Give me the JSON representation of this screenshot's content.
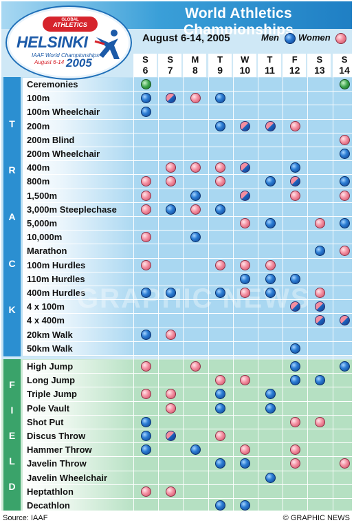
{
  "title": "World Athletics Championships",
  "date_range": "August 6-14, 2005",
  "legend": {
    "men": "Men",
    "women": "Women"
  },
  "logo": {
    "badge_top": "GLOBAL",
    "badge_main": "ATHLETICS",
    "city": "HELSINKI",
    "sub": "IAAF World Championships",
    "dates": "August 6-14",
    "year": "2005"
  },
  "days": [
    {
      "name": "S",
      "num": "6"
    },
    {
      "name": "S",
      "num": "7"
    },
    {
      "name": "M",
      "num": "8"
    },
    {
      "name": "T",
      "num": "9"
    },
    {
      "name": "W",
      "num": "10"
    },
    {
      "name": "T",
      "num": "11"
    },
    {
      "name": "F",
      "num": "12"
    },
    {
      "name": "S",
      "num": "13"
    },
    {
      "name": "S",
      "num": "14"
    }
  ],
  "sections": [
    {
      "label": "TRACK",
      "events": [
        {
          "name": "Ceremonies",
          "marks": [
            "C",
            "",
            "",
            "",
            "",
            "",
            "",
            "",
            "C"
          ]
        },
        {
          "name": "100m",
          "marks": [
            "M",
            "B",
            "W",
            "M",
            "",
            "",
            "",
            "",
            ""
          ]
        },
        {
          "name": "100m Wheelchair",
          "marks": [
            "M",
            "",
            "",
            "",
            "",
            "",
            "",
            "",
            ""
          ]
        },
        {
          "name": "200m",
          "marks": [
            "",
            "",
            "",
            "M",
            "B",
            "B",
            "W",
            "",
            ""
          ]
        },
        {
          "name": "200m Blind",
          "marks": [
            "",
            "",
            "",
            "",
            "",
            "",
            "",
            "",
            "W"
          ]
        },
        {
          "name": "200m Wheelchair",
          "marks": [
            "",
            "",
            "",
            "",
            "",
            "",
            "",
            "",
            "M"
          ]
        },
        {
          "name": "400m",
          "marks": [
            "",
            "W",
            "W",
            "W",
            "B",
            "",
            "M",
            "",
            ""
          ]
        },
        {
          "name": "800m",
          "marks": [
            "W",
            "W",
            "",
            "W",
            "",
            "M",
            "B",
            "",
            "M"
          ]
        },
        {
          "name": "1,500m",
          "marks": [
            "W",
            "",
            "M",
            "",
            "B",
            "",
            "W",
            "",
            "W"
          ]
        },
        {
          "name": "3,000m Steeplechase",
          "marks": [
            "W",
            "M",
            "W",
            "M",
            "",
            "",
            "",
            "",
            ""
          ]
        },
        {
          "name": "5,000m",
          "marks": [
            "",
            "",
            "",
            "",
            "W",
            "M",
            "",
            "W",
            "M"
          ]
        },
        {
          "name": "10,000m",
          "marks": [
            "W",
            "",
            "M",
            "",
            "",
            "",
            "",
            "",
            ""
          ]
        },
        {
          "name": "Marathon",
          "marks": [
            "",
            "",
            "",
            "",
            "",
            "",
            "",
            "M",
            "W"
          ]
        },
        {
          "name": "100m Hurdles",
          "marks": [
            "W",
            "",
            "",
            "W",
            "W",
            "W",
            "",
            "",
            ""
          ]
        },
        {
          "name": "110m Hurdles",
          "marks": [
            "",
            "",
            "",
            "",
            "M",
            "M",
            "M",
            "",
            ""
          ]
        },
        {
          "name": "400m Hurdles",
          "marks": [
            "M",
            "M",
            "",
            "M",
            "W",
            "M",
            "",
            "W",
            ""
          ]
        },
        {
          "name": "4 x 100m",
          "marks": [
            "",
            "",
            "",
            "",
            "",
            "",
            "B",
            "B",
            ""
          ]
        },
        {
          "name": "4 x 400m",
          "marks": [
            "",
            "",
            "",
            "",
            "",
            "",
            "",
            "B",
            "B"
          ]
        },
        {
          "name": "20km Walk",
          "marks": [
            "M",
            "W",
            "",
            "",
            "",
            "",
            "",
            "",
            ""
          ]
        },
        {
          "name": "50km Walk",
          "marks": [
            "",
            "",
            "",
            "",
            "",
            "",
            "M",
            "",
            ""
          ]
        }
      ]
    },
    {
      "label": "FIELD",
      "events": [
        {
          "name": "High Jump",
          "marks": [
            "W",
            "",
            "W",
            "",
            "",
            "",
            "M",
            "",
            "M"
          ]
        },
        {
          "name": "Long Jump",
          "marks": [
            "",
            "",
            "",
            "W",
            "W",
            "",
            "M",
            "M",
            ""
          ]
        },
        {
          "name": "Triple Jump",
          "marks": [
            "W",
            "W",
            "",
            "M",
            "",
            "M",
            "",
            "",
            ""
          ]
        },
        {
          "name": "Pole Vault",
          "marks": [
            "",
            "W",
            "",
            "M",
            "",
            "M",
            "",
            "",
            ""
          ]
        },
        {
          "name": "Shot Put",
          "marks": [
            "M",
            "",
            "",
            "",
            "",
            "",
            "W",
            "W",
            ""
          ]
        },
        {
          "name": "Discus Throw",
          "marks": [
            "M",
            "B",
            "",
            "W",
            "",
            "",
            "",
            "",
            ""
          ]
        },
        {
          "name": "Hammer Throw",
          "marks": [
            "M",
            "",
            "M",
            "",
            "W",
            "",
            "W",
            "",
            ""
          ]
        },
        {
          "name": "Javelin Throw",
          "marks": [
            "",
            "",
            "",
            "M",
            "M",
            "",
            "W",
            "",
            "W"
          ]
        },
        {
          "name": "Javelin Wheelchair",
          "marks": [
            "",
            "",
            "",
            "",
            "",
            "M",
            "",
            "",
            ""
          ]
        },
        {
          "name": "Heptathlon",
          "marks": [
            "W",
            "W",
            "",
            "",
            "",
            "",
            "",
            "",
            ""
          ]
        },
        {
          "name": "Decathlon",
          "marks": [
            "",
            "",
            "",
            "M",
            "M",
            "",
            "",
            "",
            ""
          ]
        }
      ]
    }
  ],
  "watermark": "GRAPHIC NEWS",
  "source": "Source: IAAF",
  "credit": "© GRAPHIC NEWS"
}
